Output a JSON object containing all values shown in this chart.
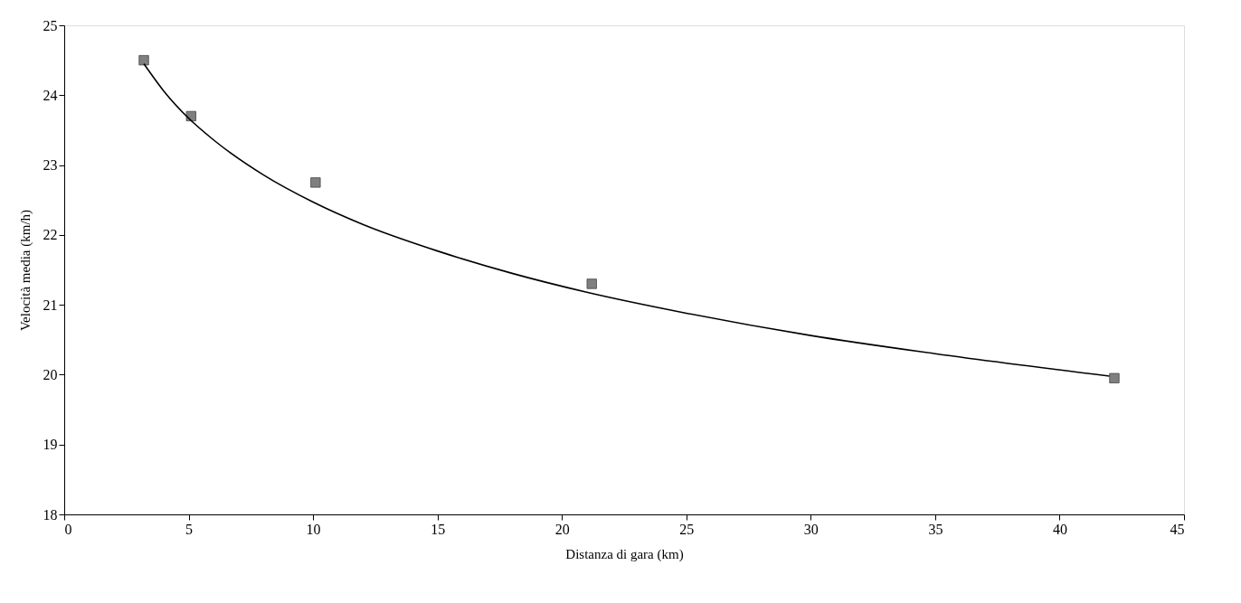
{
  "chart_data": {
    "type": "scatter",
    "xlabel": "Distanza di gara (km)",
    "ylabel": "Velocità media (km/h)",
    "xlim": [
      0,
      45
    ],
    "xticks": [
      0,
      5,
      10,
      15,
      20,
      25,
      30,
      35,
      40,
      45
    ],
    "ylim": [
      18,
      25
    ],
    "yticks": [
      18,
      19,
      20,
      21,
      22,
      23,
      24,
      25
    ],
    "grid": false,
    "series": [
      {
        "marker": "square",
        "color": "#7f7f7f",
        "x": [
          3.2,
          5.1,
          10.1,
          21.2,
          42.2
        ],
        "values": [
          24.5,
          23.7,
          22.75,
          21.3,
          19.95
        ]
      },
      {
        "type": "line",
        "marker": "none",
        "line_style": "solid",
        "color": "#000000",
        "x": [
          3.2,
          4,
          5,
          6,
          8,
          10,
          12,
          15,
          18,
          21,
          25,
          30,
          35,
          42
        ],
        "values": [
          24.45,
          24.06,
          23.67,
          23.36,
          22.86,
          22.47,
          22.15,
          21.77,
          21.45,
          21.18,
          20.88,
          20.56,
          20.3,
          19.98
        ]
      }
    ]
  }
}
